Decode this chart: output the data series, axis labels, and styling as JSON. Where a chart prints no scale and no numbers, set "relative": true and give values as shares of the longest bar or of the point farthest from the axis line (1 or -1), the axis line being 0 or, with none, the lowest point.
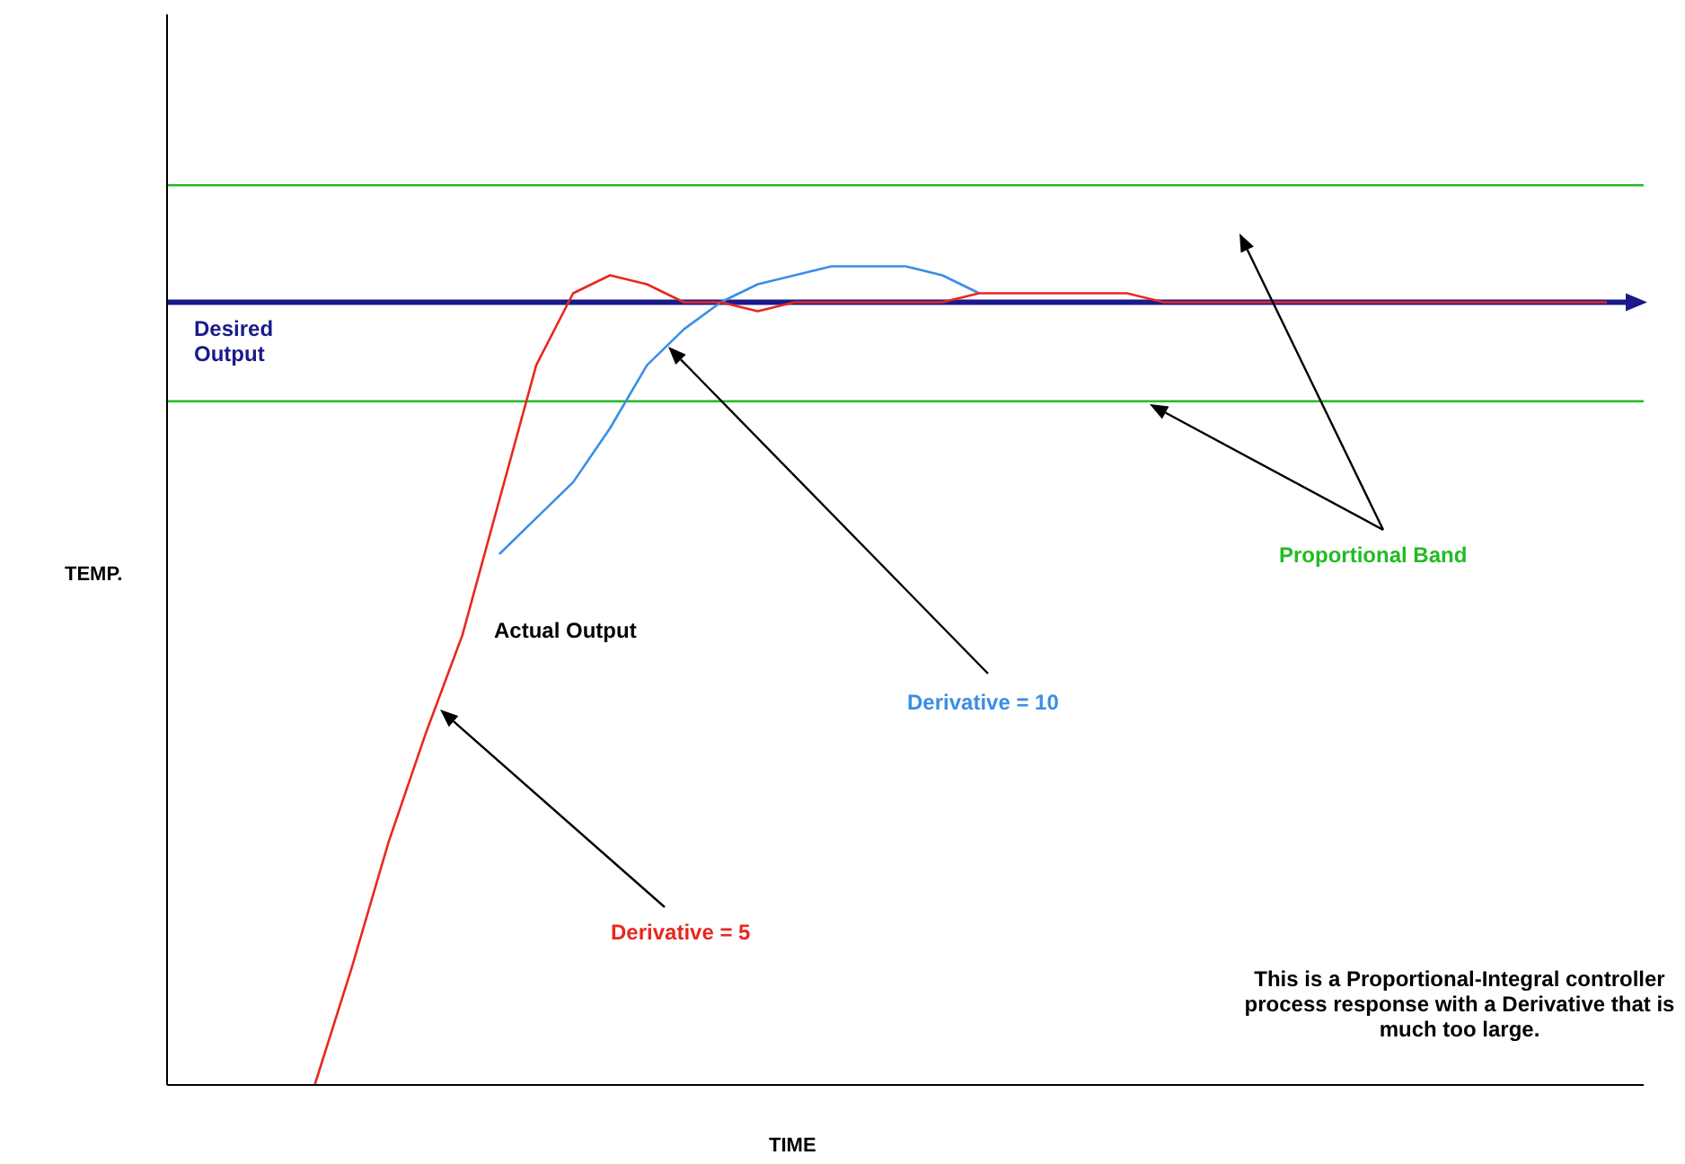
{
  "chart_data": {
    "type": "line",
    "relative": true,
    "xlabel": "TIME",
    "ylabel": "TEMP.",
    "ref_lines": [
      {
        "axis": "y",
        "value": 0.87,
        "label": "Desired Output",
        "color": "#1a1a8c"
      }
    ],
    "annotations": [
      "Actual Output",
      "This is a Proportional-Integral controller process response with a Derivative that is much too large."
    ],
    "categories": [
      null,
      null,
      null,
      null,
      null,
      null,
      null,
      null,
      null,
      null,
      null,
      null,
      null,
      null,
      null,
      null,
      null,
      null,
      null,
      null,
      null,
      null,
      null,
      null,
      null,
      null,
      null,
      null,
      null,
      null,
      null,
      null,
      null,
      null,
      null,
      null,
      null,
      null,
      null,
      null,
      null
    ],
    "series": [
      {
        "name": "Proportional Band",
        "color": "#22bb22",
        "values": [
          1,
          1,
          1,
          1,
          1,
          1,
          1,
          1,
          1,
          1,
          1,
          1,
          1,
          1,
          1,
          1,
          1,
          1,
          1,
          1,
          1,
          1,
          1,
          1,
          1,
          1,
          1,
          1,
          1,
          1,
          1,
          1,
          1,
          1,
          1,
          1,
          1,
          1,
          1,
          1,
          1
        ]
      },
      {
        "color": "#22bb22",
        "values": [
          0.76,
          0.76,
          0.76,
          0.76,
          0.76,
          0.76,
          0.76,
          0.76,
          0.76,
          0.76,
          0.76,
          0.76,
          0.76,
          0.76,
          0.76,
          0.76,
          0.76,
          0.76,
          0.76,
          0.76,
          0.76,
          0.76,
          0.76,
          0.76,
          0.76,
          0.76,
          0.76,
          0.76,
          0.76,
          0.76,
          0.76,
          0.76,
          0.76,
          0.76,
          0.76,
          0.76,
          0.76,
          0.76,
          0.76,
          0.76,
          0.76
        ]
      },
      {
        "name": "Derivative = 10",
        "color": "#3a8ee6",
        "values": [
          null,
          null,
          null,
          null,
          null,
          null,
          null,
          null,
          null,
          0.59,
          0.63,
          0.67,
          0.73,
          0.8,
          0.84,
          0.87,
          0.89,
          0.9,
          0.91,
          0.91,
          0.91,
          0.9,
          0.88,
          null,
          null,
          null,
          null,
          null,
          null,
          null,
          null,
          null,
          null,
          null,
          null,
          null,
          null,
          null,
          null,
          null,
          null
        ]
      },
      {
        "name": "Derivative = 5",
        "color": "#e8281e",
        "values": [
          null,
          null,
          null,
          null,
          0,
          0.13,
          0.27,
          0.39,
          0.5,
          0.65,
          0.8,
          0.88,
          0.9,
          0.89,
          0.87,
          0.87,
          0.86,
          0.87,
          0.87,
          0.87,
          0.87,
          0.87,
          0.88,
          0.88,
          0.88,
          0.88,
          0.88,
          0.87,
          0.87,
          0.87,
          0.87,
          0.87,
          0.87,
          0.87,
          0.87,
          0.87,
          0.87,
          0.87,
          0.87,
          0.87,
          null
        ]
      }
    ]
  }
}
